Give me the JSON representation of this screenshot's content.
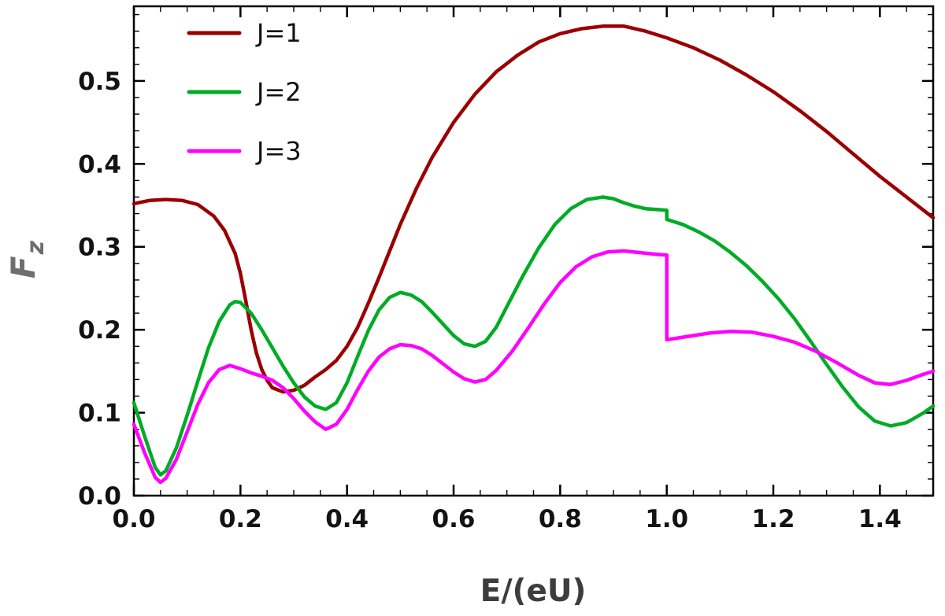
{
  "figure": {
    "background": "#ffffff"
  },
  "chart_data": {
    "type": "line",
    "title": "",
    "xlabel": "E/(eU)",
    "ylabel": "Fz",
    "ylabel_main": "F",
    "ylabel_sub": "z",
    "xlim": [
      0,
      1.5
    ],
    "ylim": [
      0,
      0.59
    ],
    "x_ticks": [
      0,
      0.2,
      0.4,
      0.6,
      0.8,
      1.0,
      1.2,
      1.4
    ],
    "x_tick_labels": [
      "0.0",
      "0.2",
      "0.4",
      "0.6",
      "0.8",
      "1.0",
      "1.2",
      "1.4"
    ],
    "y_ticks": [
      0,
      0.1,
      0.2,
      0.3,
      0.4,
      0.5
    ],
    "y_tick_labels": [
      "0.0",
      "0.1",
      "0.2",
      "0.3",
      "0.4",
      "0.5"
    ],
    "x_minor_step": 0.05,
    "y_minor_step": 0.02,
    "grid": false,
    "legend_position": "top-left",
    "frame_color": "#000000",
    "tick_label_color": "#131313",
    "xlabel_color": "#3d3d3d",
    "ylabel_color": "#6e6e6e",
    "series": [
      {
        "name": "J=1",
        "color": "#9b0000",
        "points": [
          [
            0.0,
            0.352
          ],
          [
            0.03,
            0.356
          ],
          [
            0.06,
            0.357
          ],
          [
            0.09,
            0.356
          ],
          [
            0.12,
            0.351
          ],
          [
            0.15,
            0.337
          ],
          [
            0.17,
            0.32
          ],
          [
            0.19,
            0.292
          ],
          [
            0.2,
            0.268
          ],
          [
            0.21,
            0.235
          ],
          [
            0.22,
            0.2
          ],
          [
            0.23,
            0.172
          ],
          [
            0.24,
            0.152
          ],
          [
            0.25,
            0.139
          ],
          [
            0.26,
            0.13
          ],
          [
            0.28,
            0.125
          ],
          [
            0.3,
            0.127
          ],
          [
            0.32,
            0.133
          ],
          [
            0.34,
            0.143
          ],
          [
            0.36,
            0.152
          ],
          [
            0.38,
            0.163
          ],
          [
            0.4,
            0.18
          ],
          [
            0.42,
            0.203
          ],
          [
            0.44,
            0.232
          ],
          [
            0.46,
            0.263
          ],
          [
            0.48,
            0.295
          ],
          [
            0.5,
            0.327
          ],
          [
            0.53,
            0.37
          ],
          [
            0.56,
            0.408
          ],
          [
            0.6,
            0.45
          ],
          [
            0.64,
            0.484
          ],
          [
            0.68,
            0.511
          ],
          [
            0.72,
            0.531
          ],
          [
            0.76,
            0.547
          ],
          [
            0.8,
            0.557
          ],
          [
            0.84,
            0.563
          ],
          [
            0.88,
            0.566
          ],
          [
            0.92,
            0.566
          ],
          [
            0.96,
            0.56
          ],
          [
            1.0,
            0.552
          ],
          [
            1.05,
            0.54
          ],
          [
            1.1,
            0.525
          ],
          [
            1.15,
            0.507
          ],
          [
            1.2,
            0.487
          ],
          [
            1.25,
            0.464
          ],
          [
            1.3,
            0.439
          ],
          [
            1.35,
            0.412
          ],
          [
            1.4,
            0.385
          ],
          [
            1.45,
            0.36
          ],
          [
            1.5,
            0.335
          ]
        ]
      },
      {
        "name": "J=2",
        "color": "#00ac26",
        "points": [
          [
            0.0,
            0.112
          ],
          [
            0.02,
            0.072
          ],
          [
            0.04,
            0.034
          ],
          [
            0.05,
            0.025
          ],
          [
            0.06,
            0.03
          ],
          [
            0.08,
            0.058
          ],
          [
            0.1,
            0.097
          ],
          [
            0.12,
            0.138
          ],
          [
            0.14,
            0.178
          ],
          [
            0.16,
            0.21
          ],
          [
            0.18,
            0.23
          ],
          [
            0.19,
            0.234
          ],
          [
            0.2,
            0.233
          ],
          [
            0.22,
            0.22
          ],
          [
            0.24,
            0.2
          ],
          [
            0.26,
            0.178
          ],
          [
            0.28,
            0.156
          ],
          [
            0.3,
            0.136
          ],
          [
            0.32,
            0.119
          ],
          [
            0.34,
            0.108
          ],
          [
            0.36,
            0.104
          ],
          [
            0.38,
            0.112
          ],
          [
            0.4,
            0.136
          ],
          [
            0.42,
            0.168
          ],
          [
            0.44,
            0.199
          ],
          [
            0.46,
            0.224
          ],
          [
            0.48,
            0.239
          ],
          [
            0.5,
            0.245
          ],
          [
            0.52,
            0.242
          ],
          [
            0.54,
            0.234
          ],
          [
            0.56,
            0.221
          ],
          [
            0.58,
            0.207
          ],
          [
            0.6,
            0.193
          ],
          [
            0.62,
            0.183
          ],
          [
            0.64,
            0.18
          ],
          [
            0.66,
            0.186
          ],
          [
            0.68,
            0.203
          ],
          [
            0.7,
            0.228
          ],
          [
            0.73,
            0.265
          ],
          [
            0.76,
            0.299
          ],
          [
            0.79,
            0.327
          ],
          [
            0.82,
            0.346
          ],
          [
            0.85,
            0.357
          ],
          [
            0.88,
            0.36
          ],
          [
            0.9,
            0.358
          ],
          [
            0.92,
            0.353
          ],
          [
            0.94,
            0.349
          ],
          [
            0.96,
            0.346
          ],
          [
            0.98,
            0.345
          ],
          [
            1.0,
            0.344
          ],
          [
            1.0,
            0.333
          ],
          [
            1.03,
            0.327
          ],
          [
            1.06,
            0.318
          ],
          [
            1.09,
            0.307
          ],
          [
            1.12,
            0.293
          ],
          [
            1.15,
            0.277
          ],
          [
            1.18,
            0.258
          ],
          [
            1.21,
            0.237
          ],
          [
            1.24,
            0.213
          ],
          [
            1.27,
            0.186
          ],
          [
            1.3,
            0.158
          ],
          [
            1.33,
            0.131
          ],
          [
            1.36,
            0.107
          ],
          [
            1.39,
            0.09
          ],
          [
            1.42,
            0.084
          ],
          [
            1.45,
            0.088
          ],
          [
            1.48,
            0.099
          ],
          [
            1.5,
            0.108
          ]
        ]
      },
      {
        "name": "J=3",
        "color": "#ff00ff",
        "points": [
          [
            0.0,
            0.086
          ],
          [
            0.02,
            0.052
          ],
          [
            0.04,
            0.022
          ],
          [
            0.05,
            0.016
          ],
          [
            0.06,
            0.021
          ],
          [
            0.08,
            0.044
          ],
          [
            0.1,
            0.077
          ],
          [
            0.12,
            0.11
          ],
          [
            0.14,
            0.136
          ],
          [
            0.16,
            0.152
          ],
          [
            0.18,
            0.157
          ],
          [
            0.2,
            0.153
          ],
          [
            0.22,
            0.148
          ],
          [
            0.24,
            0.144
          ],
          [
            0.26,
            0.139
          ],
          [
            0.28,
            0.13
          ],
          [
            0.3,
            0.117
          ],
          [
            0.32,
            0.102
          ],
          [
            0.34,
            0.089
          ],
          [
            0.36,
            0.08
          ],
          [
            0.38,
            0.086
          ],
          [
            0.4,
            0.104
          ],
          [
            0.42,
            0.128
          ],
          [
            0.44,
            0.15
          ],
          [
            0.46,
            0.167
          ],
          [
            0.48,
            0.177
          ],
          [
            0.5,
            0.182
          ],
          [
            0.52,
            0.181
          ],
          [
            0.54,
            0.177
          ],
          [
            0.56,
            0.169
          ],
          [
            0.58,
            0.159
          ],
          [
            0.6,
            0.149
          ],
          [
            0.62,
            0.141
          ],
          [
            0.64,
            0.137
          ],
          [
            0.66,
            0.14
          ],
          [
            0.68,
            0.151
          ],
          [
            0.71,
            0.174
          ],
          [
            0.74,
            0.202
          ],
          [
            0.77,
            0.231
          ],
          [
            0.8,
            0.257
          ],
          [
            0.83,
            0.276
          ],
          [
            0.86,
            0.288
          ],
          [
            0.89,
            0.294
          ],
          [
            0.92,
            0.295
          ],
          [
            0.95,
            0.293
          ],
          [
            0.98,
            0.291
          ],
          [
            1.0,
            0.29
          ],
          [
            1.0,
            0.188
          ],
          [
            1.04,
            0.192
          ],
          [
            1.08,
            0.196
          ],
          [
            1.12,
            0.198
          ],
          [
            1.16,
            0.197
          ],
          [
            1.2,
            0.192
          ],
          [
            1.24,
            0.185
          ],
          [
            1.28,
            0.174
          ],
          [
            1.32,
            0.16
          ],
          [
            1.36,
            0.145
          ],
          [
            1.39,
            0.136
          ],
          [
            1.42,
            0.134
          ],
          [
            1.45,
            0.139
          ],
          [
            1.48,
            0.146
          ],
          [
            1.5,
            0.15
          ]
        ]
      }
    ],
    "legend_entries": [
      {
        "label": "J=1"
      },
      {
        "label": "J=2"
      },
      {
        "label": "J=3"
      }
    ]
  }
}
